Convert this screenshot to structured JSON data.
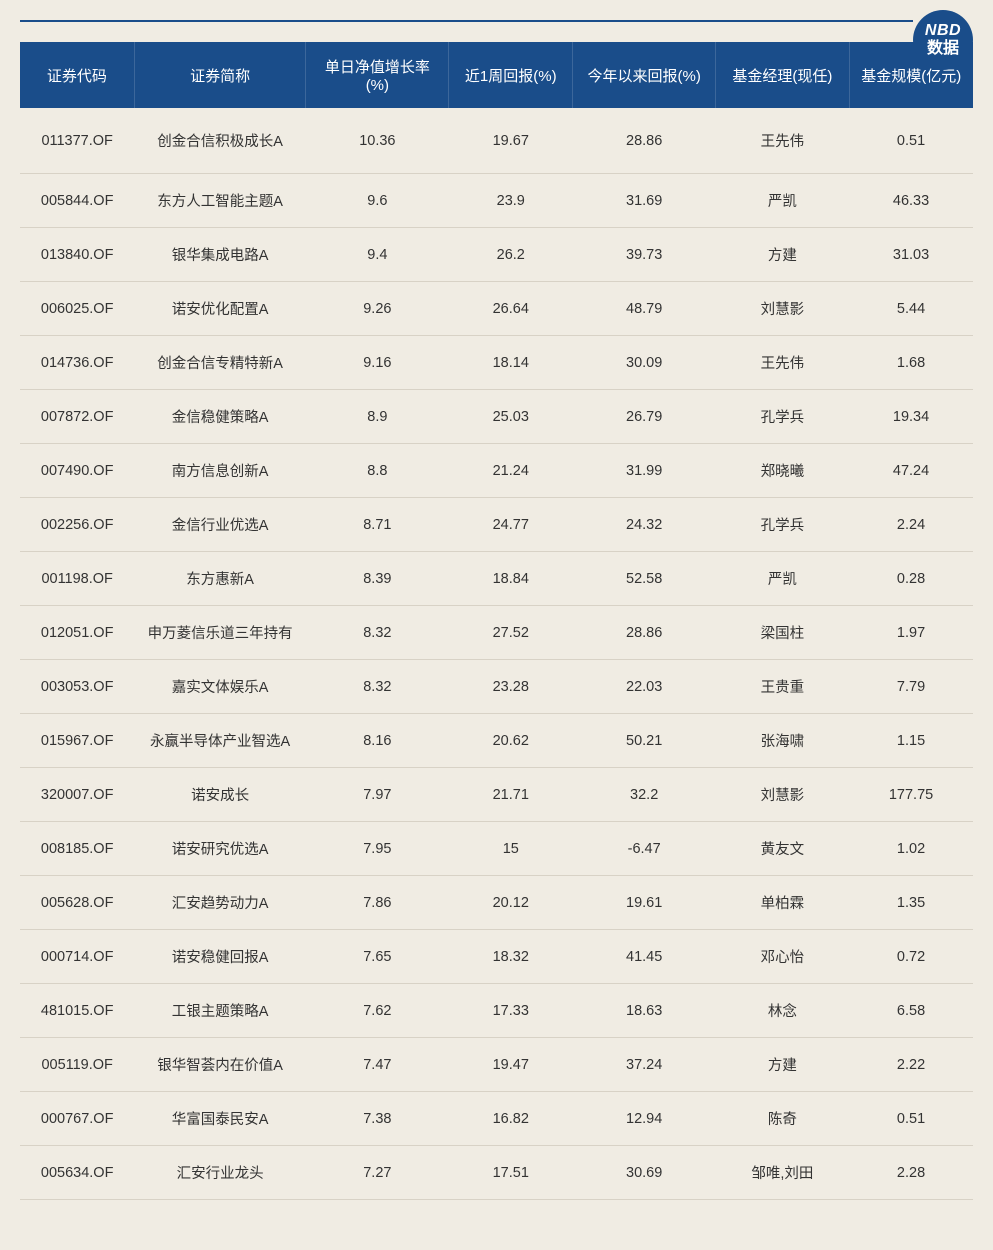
{
  "badge": {
    "line1": "NBD",
    "line2": "数据"
  },
  "colors": {
    "header_bg": "#1a4d8a",
    "header_fg": "#ffffff",
    "body_bg": "#f0ece3",
    "row_border": "#d8d2c6",
    "text": "#333333"
  },
  "table": {
    "columns": [
      "证券代码",
      "证券简称",
      "单日净值增长率(%)",
      "近1周回报(%)",
      "今年以来回报(%)",
      "基金经理(现任)",
      "基金规模(亿元)"
    ],
    "rows": [
      [
        "011377.OF",
        "创金合信积极成长A",
        "10.36",
        "19.67",
        "28.86",
        "王先伟",
        "0.51"
      ],
      [
        "005844.OF",
        "东方人工智能主题A",
        "9.6",
        "23.9",
        "31.69",
        "严凯",
        "46.33"
      ],
      [
        "013840.OF",
        "银华集成电路A",
        "9.4",
        "26.2",
        "39.73",
        "方建",
        "31.03"
      ],
      [
        "006025.OF",
        "诺安优化配置A",
        "9.26",
        "26.64",
        "48.79",
        "刘慧影",
        "5.44"
      ],
      [
        "014736.OF",
        "创金合信专精特新A",
        "9.16",
        "18.14",
        "30.09",
        "王先伟",
        "1.68"
      ],
      [
        "007872.OF",
        "金信稳健策略A",
        "8.9",
        "25.03",
        "26.79",
        "孔学兵",
        "19.34"
      ],
      [
        "007490.OF",
        "南方信息创新A",
        "8.8",
        "21.24",
        "31.99",
        "郑晓曦",
        "47.24"
      ],
      [
        "002256.OF",
        "金信行业优选A",
        "8.71",
        "24.77",
        "24.32",
        "孔学兵",
        "2.24"
      ],
      [
        "001198.OF",
        "东方惠新A",
        "8.39",
        "18.84",
        "52.58",
        "严凯",
        "0.28"
      ],
      [
        "012051.OF",
        "申万菱信乐道三年持有",
        "8.32",
        "27.52",
        "28.86",
        "梁国柱",
        "1.97"
      ],
      [
        "003053.OF",
        "嘉实文体娱乐A",
        "8.32",
        "23.28",
        "22.03",
        "王贵重",
        "7.79"
      ],
      [
        "015967.OF",
        "永赢半导体产业智选A",
        "8.16",
        "20.62",
        "50.21",
        "张海啸",
        "1.15"
      ],
      [
        "320007.OF",
        "诺安成长",
        "7.97",
        "21.71",
        "32.2",
        "刘慧影",
        "177.75"
      ],
      [
        "008185.OF",
        "诺安研究优选A",
        "7.95",
        "15",
        "-6.47",
        "黄友文",
        "1.02"
      ],
      [
        "005628.OF",
        "汇安趋势动力A",
        "7.86",
        "20.12",
        "19.61",
        "单柏霖",
        "1.35"
      ],
      [
        "000714.OF",
        "诺安稳健回报A",
        "7.65",
        "18.32",
        "41.45",
        "邓心怡",
        "0.72"
      ],
      [
        "481015.OF",
        "工银主题策略A",
        "7.62",
        "17.33",
        "18.63",
        "林念",
        "6.58"
      ],
      [
        "005119.OF",
        "银华智荟内在价值A",
        "7.47",
        "19.47",
        "37.24",
        "方建",
        "2.22"
      ],
      [
        "000767.OF",
        "华富国泰民安A",
        "7.38",
        "16.82",
        "12.94",
        "陈奇",
        "0.51"
      ],
      [
        "005634.OF",
        "汇安行业龙头",
        "7.27",
        "17.51",
        "30.69",
        "邹唯,刘田",
        "2.28"
      ]
    ]
  }
}
